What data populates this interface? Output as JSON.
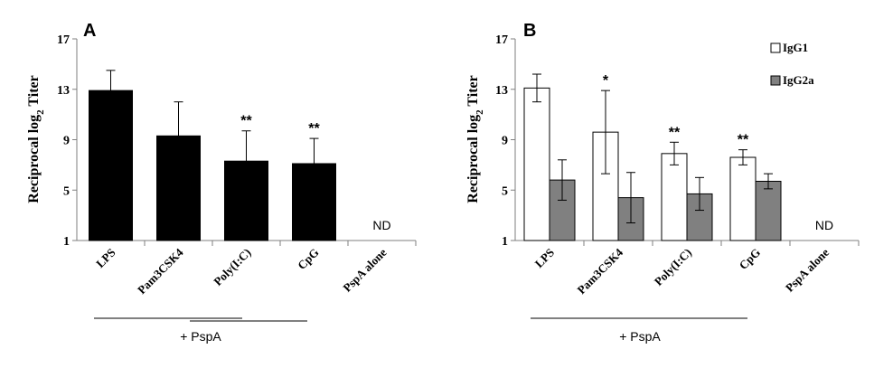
{
  "chart_data": [
    {
      "type": "bar",
      "panel_label": "A",
      "ylabel": "Reciprocal log",
      "ylabel_sub": "2",
      "ylabel_tail": " Titer",
      "ylim": [
        1,
        17
      ],
      "yticks": [
        "1",
        "5",
        "9",
        "13",
        "17"
      ],
      "categories": [
        "LPS",
        "Pam3CSK4",
        "Poly(I:C)",
        "CpG",
        "PspA alone"
      ],
      "series": [
        {
          "values": [
            12.9,
            9.3,
            7.3,
            7.1,
            null
          ],
          "errors": [
            1.6,
            2.7,
            2.4,
            2.0,
            null
          ],
          "color": "#000000"
        }
      ],
      "significance": [
        "",
        "",
        "**",
        "**",
        ""
      ],
      "nd_label": "ND",
      "group_label": "+ PspA"
    },
    {
      "type": "bar",
      "panel_label": "B",
      "ylabel": "Reciprocal log",
      "ylabel_sub": "2",
      "ylabel_tail": " Titer",
      "ylim": [
        1,
        17
      ],
      "yticks": [
        "1",
        "5",
        "9",
        "13",
        "17"
      ],
      "categories": [
        "LPS",
        "Pam3CSK4",
        "Poly(I:C)",
        "CpG",
        "PspA alone"
      ],
      "series": [
        {
          "name": "IgG1",
          "values": [
            13.1,
            9.6,
            7.9,
            7.6,
            null
          ],
          "errors": [
            1.1,
            3.3,
            0.9,
            0.6,
            null
          ],
          "color": "#ffffff"
        },
        {
          "name": "IgG2a",
          "values": [
            5.8,
            4.4,
            4.7,
            5.7,
            null
          ],
          "errors": [
            1.6,
            2.0,
            1.3,
            0.6,
            null
          ],
          "color": "#808080"
        }
      ],
      "significance": [
        "",
        "*",
        "**",
        "**",
        ""
      ],
      "nd_label": "ND",
      "group_label": "+ PspA",
      "legend_position": "top-right"
    }
  ]
}
